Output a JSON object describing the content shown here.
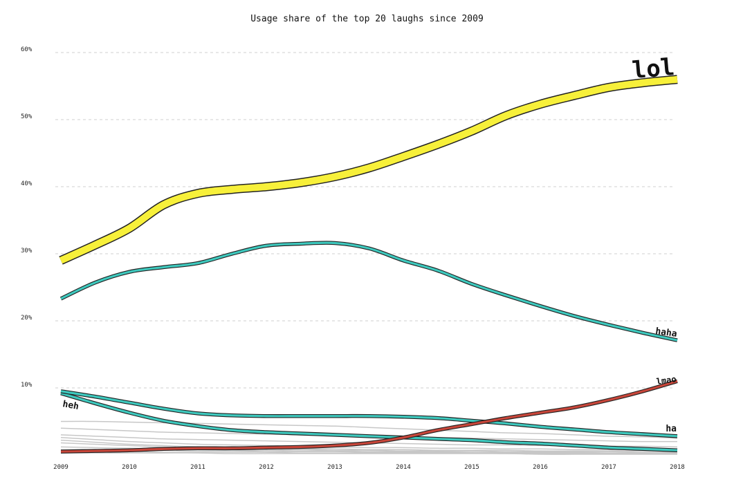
{
  "chart_data": {
    "type": "line",
    "title": "Usage share of the top 20 laughs since 2009",
    "xlabel": "",
    "ylabel": "",
    "xlim": [
      2009,
      2018
    ],
    "ylim": [
      0,
      60
    ],
    "grid": true,
    "x_ticks": [
      "2009",
      "2010",
      "2011",
      "2012",
      "2013",
      "2014",
      "2015",
      "2016",
      "2017",
      "2018"
    ],
    "y_ticks": [
      {
        "value": 10,
        "label": "10%"
      },
      {
        "value": 20,
        "label": "20%"
      },
      {
        "value": 30,
        "label": "30%"
      },
      {
        "value": 40,
        "label": "40%"
      },
      {
        "value": 50,
        "label": "50%"
      },
      {
        "value": 60,
        "label": "60%"
      }
    ],
    "x": [
      2009,
      2009.5,
      2010,
      2010.5,
      2011,
      2011.5,
      2012,
      2012.5,
      2013,
      2013.5,
      2014,
      2014.5,
      2015,
      2015.5,
      2016,
      2016.5,
      2017,
      2017.5,
      2018
    ],
    "series": [
      {
        "name": "lol",
        "color": "#f7f03a",
        "values": [
          29.0,
          31.3,
          33.8,
          37.3,
          39.0,
          39.6,
          40.0,
          40.6,
          41.5,
          42.8,
          44.5,
          46.3,
          48.3,
          50.6,
          52.3,
          53.6,
          54.8,
          55.5,
          56.0
        ]
      },
      {
        "name": "haha",
        "color": "#3ec9be",
        "values": [
          23.3,
          25.7,
          27.3,
          28.0,
          28.6,
          30.0,
          31.2,
          31.5,
          31.6,
          30.8,
          29.0,
          27.5,
          25.5,
          23.8,
          22.2,
          20.7,
          19.4,
          18.2,
          17.1
        ]
      },
      {
        "name": "lmao",
        "color": "#c8463a",
        "values": [
          0.5,
          0.6,
          0.7,
          0.9,
          1.0,
          1.0,
          1.1,
          1.2,
          1.4,
          1.8,
          2.6,
          3.7,
          4.6,
          5.5,
          6.3,
          7.1,
          8.2,
          9.5,
          11.0
        ]
      },
      {
        "name": "ha",
        "color": "#3ec9be",
        "values": [
          9.5,
          8.7,
          7.8,
          6.9,
          6.2,
          5.9,
          5.8,
          5.8,
          5.8,
          5.8,
          5.7,
          5.5,
          5.1,
          4.7,
          4.2,
          3.8,
          3.4,
          3.1,
          2.8
        ]
      },
      {
        "name": "heh",
        "color": "#3ec9be",
        "values": [
          9.2,
          7.7,
          6.3,
          5.1,
          4.3,
          3.7,
          3.4,
          3.2,
          3.0,
          2.8,
          2.6,
          2.4,
          2.2,
          1.9,
          1.7,
          1.4,
          1.1,
          0.9,
          0.7
        ]
      }
    ],
    "other_series": [
      {
        "color": "#c7c7c7",
        "values": [
          5.0,
          5.0,
          4.9,
          4.8,
          4.7,
          4.6,
          4.5,
          4.4,
          4.3,
          4.1,
          3.9,
          3.7,
          3.5,
          3.3,
          3.2,
          3.0,
          2.8,
          2.7,
          2.5
        ]
      },
      {
        "color": "#c7c7c7",
        "values": [
          4.0,
          3.8,
          3.6,
          3.4,
          3.3,
          3.2,
          3.1,
          3.0,
          2.9,
          2.8,
          2.7,
          2.6,
          2.5,
          2.4,
          2.3,
          2.2,
          2.1,
          2.0,
          2.0
        ]
      },
      {
        "color": "#c7c7c7",
        "values": [
          3.0,
          2.8,
          2.6,
          2.4,
          2.3,
          2.2,
          2.1,
          2.0,
          1.9,
          1.8,
          1.7,
          1.6,
          1.5,
          1.5,
          1.4,
          1.4,
          1.3,
          1.3,
          1.2
        ]
      },
      {
        "color": "#c7c7c7",
        "values": [
          2.6,
          2.3,
          2.0,
          1.8,
          1.6,
          1.5,
          1.4,
          1.3,
          1.2,
          1.1,
          1.1,
          1.0,
          1.0,
          0.9,
          0.9,
          0.8,
          0.8,
          0.8,
          0.7
        ]
      },
      {
        "color": "#c7c7c7",
        "values": [
          2.2,
          1.9,
          1.6,
          1.4,
          1.2,
          1.1,
          1.0,
          0.9,
          0.9,
          0.8,
          0.8,
          0.7,
          0.7,
          0.7,
          0.6,
          0.6,
          0.6,
          0.6,
          0.5
        ]
      },
      {
        "color": "#c7c7c7",
        "values": [
          1.8,
          1.6,
          1.4,
          1.2,
          1.0,
          0.9,
          0.8,
          0.8,
          0.7,
          0.7,
          0.6,
          0.6,
          0.6,
          0.5,
          0.5,
          0.5,
          0.5,
          0.4,
          0.4
        ]
      },
      {
        "color": "#c7c7c7",
        "values": [
          1.2,
          1.1,
          1.0,
          0.9,
          0.8,
          0.7,
          0.7,
          0.6,
          0.6,
          0.5,
          0.5,
          0.5,
          0.4,
          0.4,
          0.4,
          0.4,
          0.3,
          0.3,
          0.3
        ]
      },
      {
        "color": "#c7c7c7",
        "values": [
          0.8,
          0.8,
          0.7,
          0.7,
          0.6,
          0.6,
          0.5,
          0.5,
          0.5,
          0.4,
          0.4,
          0.4,
          0.4,
          0.3,
          0.3,
          0.3,
          0.3,
          0.3,
          0.2
        ]
      },
      {
        "color": "#c7c7c7",
        "values": [
          0.5,
          0.5,
          0.5,
          0.4,
          0.4,
          0.4,
          0.4,
          0.3,
          0.3,
          0.3,
          0.3,
          0.3,
          0.3,
          0.2,
          0.2,
          0.2,
          0.2,
          0.2,
          0.2
        ]
      },
      {
        "color": "#c7c7c7",
        "values": [
          0.3,
          0.3,
          0.3,
          0.3,
          0.3,
          0.2,
          0.2,
          0.2,
          0.2,
          0.2,
          0.2,
          0.2,
          0.2,
          0.2,
          0.1,
          0.1,
          0.1,
          0.1,
          0.1
        ]
      }
    ]
  }
}
